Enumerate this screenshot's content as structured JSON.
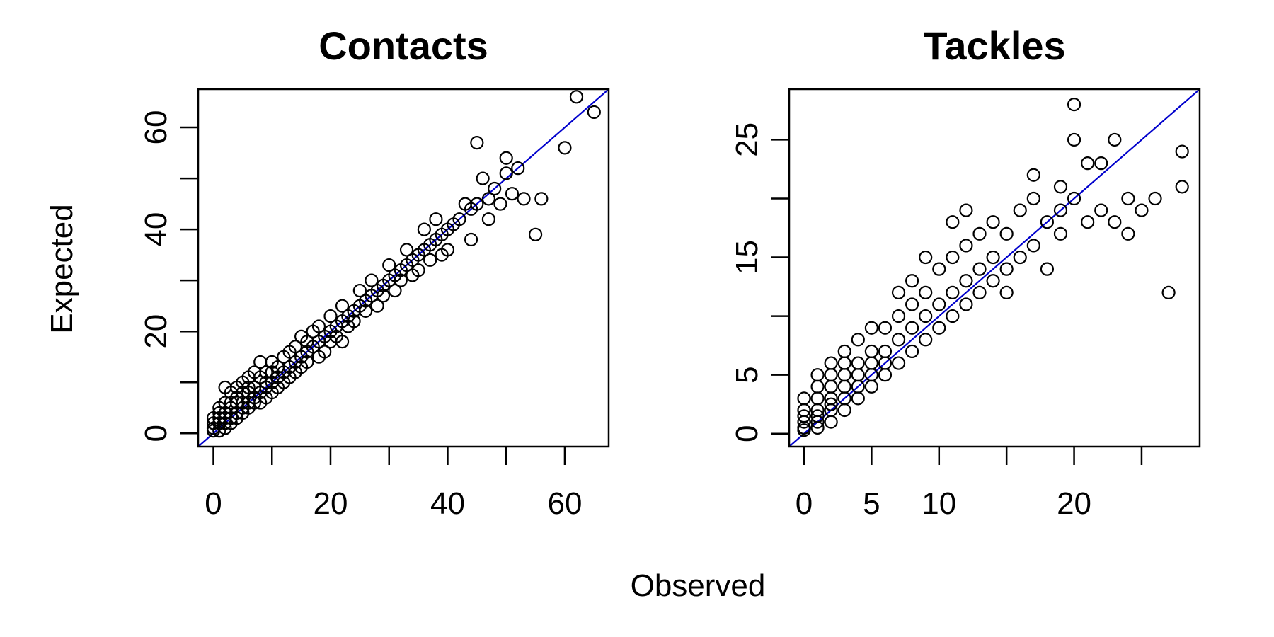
{
  "figure": {
    "xlabel": "Observed",
    "ylabel": "Expected",
    "colors": {
      "points": "#000000",
      "reference_line": "#0000cc",
      "background": "#ffffff"
    }
  },
  "chart_data": [
    {
      "type": "scatter",
      "title": "Contacts",
      "xlim": [
        -2.6,
        67.5
      ],
      "ylim": [
        -2.6,
        67.5
      ],
      "xticks": [
        0,
        10,
        20,
        30,
        40,
        50,
        60
      ],
      "xtick_labels": [
        "0",
        "",
        "20",
        "",
        "40",
        "",
        "60"
      ],
      "yticks": [
        0,
        10,
        20,
        30,
        40,
        50,
        60
      ],
      "ytick_labels": [
        "0",
        "",
        "20",
        "",
        "40",
        "",
        "60"
      ],
      "reference_line": {
        "slope": 1,
        "intercept": 0
      },
      "grid": false,
      "x": [
        0,
        0,
        0,
        0,
        1,
        1,
        1,
        1,
        1,
        2,
        2,
        2,
        2,
        2,
        2,
        3,
        3,
        3,
        3,
        3,
        4,
        4,
        4,
        4,
        4,
        5,
        5,
        5,
        5,
        5,
        6,
        6,
        6,
        6,
        6,
        7,
        7,
        7,
        7,
        8,
        8,
        8,
        8,
        9,
        9,
        9,
        9,
        10,
        10,
        10,
        10,
        11,
        11,
        11,
        12,
        12,
        12,
        13,
        13,
        13,
        14,
        14,
        14,
        15,
        15,
        15,
        16,
        16,
        16,
        17,
        17,
        18,
        18,
        18,
        19,
        19,
        20,
        20,
        20,
        21,
        21,
        22,
        22,
        22,
        23,
        23,
        24,
        24,
        25,
        25,
        26,
        26,
        27,
        27,
        28,
        28,
        29,
        29,
        30,
        30,
        31,
        31,
        32,
        32,
        33,
        33,
        34,
        34,
        35,
        35,
        36,
        36,
        37,
        37,
        38,
        38,
        39,
        39,
        40,
        40,
        41,
        42,
        43,
        44,
        44,
        45,
        45,
        46,
        47,
        47,
        48,
        49,
        50,
        50,
        51,
        52,
        53,
        55,
        56,
        60,
        62,
        65
      ],
      "y": [
        0.5,
        2,
        3,
        1,
        0.5,
        3,
        5,
        2,
        4,
        1,
        4,
        6,
        3,
        9,
        2,
        3,
        5,
        8,
        2,
        6,
        4,
        6,
        9,
        3,
        7,
        5,
        4,
        8,
        10,
        6,
        6,
        8,
        11,
        5,
        9,
        7,
        12,
        6,
        9,
        8,
        11,
        6,
        14,
        9,
        7,
        12,
        10,
        10,
        14,
        8,
        12,
        11,
        13,
        9,
        12,
        15,
        10,
        13,
        16,
        11,
        14,
        17,
        12,
        15,
        19,
        13,
        16,
        18,
        14,
        17,
        20,
        18,
        15,
        21,
        19,
        16,
        20,
        23,
        18,
        21,
        19,
        22,
        18,
        25,
        23,
        21,
        24,
        22,
        25,
        28,
        26,
        24,
        27,
        30,
        28,
        25,
        29,
        27,
        30,
        33,
        31,
        28,
        32,
        30,
        33,
        36,
        34,
        31,
        35,
        32,
        36,
        40,
        37,
        34,
        38,
        42,
        39,
        35,
        40,
        36,
        41,
        42,
        45,
        44,
        38,
        45,
        57,
        50,
        46,
        42,
        48,
        45,
        51,
        54,
        47,
        52,
        46,
        39,
        46,
        56,
        66,
        63
      ]
    },
    {
      "type": "scatter",
      "title": "Tackles",
      "xlim": [
        -1.1,
        29.3
      ],
      "ylim": [
        -1.1,
        29.3
      ],
      "xticks": [
        0,
        5,
        10,
        15,
        20,
        25
      ],
      "xtick_labels": [
        "0",
        "5",
        "10",
        "",
        "20",
        ""
      ],
      "yticks": [
        0,
        5,
        10,
        15,
        20,
        25
      ],
      "ytick_labels": [
        "0",
        "5",
        "",
        "15",
        "",
        "25"
      ],
      "reference_line": {
        "slope": 1,
        "intercept": 0
      },
      "grid": false,
      "x": [
        0,
        0,
        0,
        0,
        0,
        0,
        1,
        1,
        1,
        1,
        1,
        1,
        1,
        2,
        2,
        2,
        2,
        2,
        2,
        2,
        3,
        3,
        3,
        3,
        3,
        3,
        4,
        4,
        4,
        4,
        4,
        5,
        5,
        5,
        5,
        5,
        6,
        6,
        6,
        6,
        7,
        7,
        7,
        7,
        8,
        8,
        8,
        8,
        9,
        9,
        9,
        9,
        10,
        10,
        10,
        11,
        11,
        11,
        11,
        12,
        12,
        12,
        12,
        13,
        13,
        13,
        14,
        14,
        14,
        15,
        15,
        15,
        16,
        16,
        17,
        17,
        17,
        18,
        18,
        19,
        19,
        19,
        20,
        20,
        20,
        21,
        21,
        22,
        22,
        23,
        23,
        24,
        24,
        25,
        26,
        27,
        28,
        28
      ],
      "y": [
        0.3,
        1,
        2,
        0.5,
        1.5,
        3,
        1,
        2,
        3,
        4,
        0.5,
        1.5,
        5,
        1,
        2,
        3,
        4,
        5,
        6,
        2.5,
        2,
        3,
        4,
        5,
        6,
        7,
        3,
        4,
        5,
        6,
        8,
        4,
        5,
        6,
        7,
        9,
        5,
        6,
        7,
        9,
        6,
        8,
        10,
        12,
        7,
        9,
        11,
        13,
        8,
        10,
        12,
        15,
        9,
        11,
        14,
        10,
        12,
        15,
        18,
        11,
        13,
        16,
        19,
        12,
        14,
        17,
        13,
        15,
        18,
        12,
        14,
        17,
        15,
        19,
        16,
        20,
        22,
        18,
        14,
        17,
        21,
        19,
        20,
        25,
        28,
        18,
        23,
        19,
        23,
        18,
        25,
        20,
        17,
        19,
        20,
        12,
        24,
        21
      ]
    }
  ]
}
